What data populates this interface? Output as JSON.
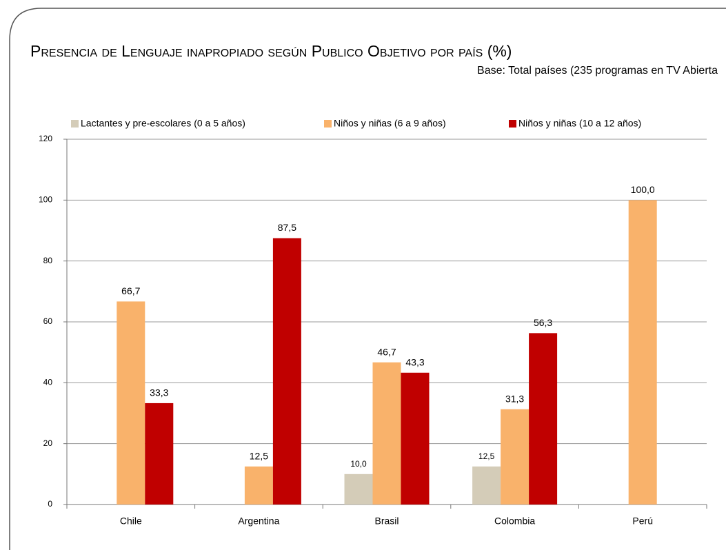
{
  "chart_data": {
    "type": "bar",
    "title": "Presencia de Lenguaje inapropiado según Publico Objetivo por país (%)",
    "subtitle": "Base: Total países (235 programas en TV Abierta",
    "categories": [
      "Chile",
      "Argentina",
      "Brasil",
      "Colombia",
      "Perú"
    ],
    "series": [
      {
        "name": "Lactantes y pre-escolares (0 a 5 años)",
        "color": "#d4ccb8",
        "values": [
          null,
          null,
          10.0,
          12.5,
          null
        ],
        "value_labels": [
          null,
          null,
          "10,0",
          "12,5",
          null
        ]
      },
      {
        "name": "Niños y niñas (6 a 9 años)",
        "color": "#f9b26b",
        "values": [
          66.7,
          12.5,
          46.7,
          31.3,
          100.0
        ],
        "value_labels": [
          "66,7",
          "12,5",
          "46,7",
          "31,3",
          "100,0"
        ]
      },
      {
        "name": "Niños y niñas (10 a 12 años)",
        "color": "#c00000",
        "values": [
          33.3,
          87.5,
          43.3,
          56.3,
          null
        ],
        "value_labels": [
          "33,3",
          "87,5",
          "43,3",
          "56,3",
          null
        ]
      }
    ],
    "ylim": [
      0,
      120
    ],
    "yticks": [
      0,
      20,
      40,
      60,
      80,
      100,
      120
    ],
    "grid": true
  }
}
